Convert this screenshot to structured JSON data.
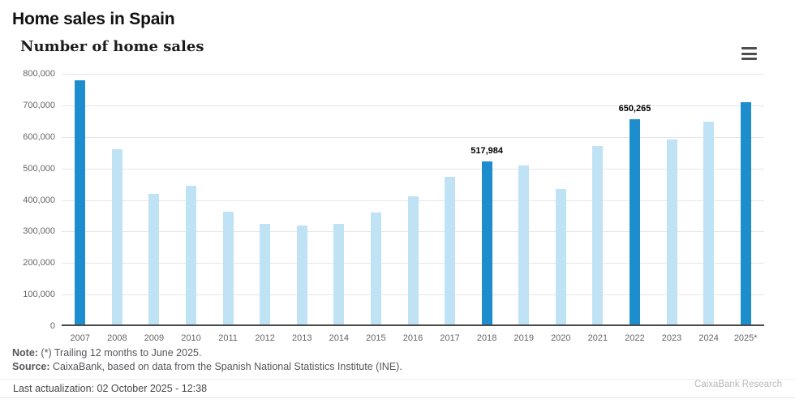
{
  "header": {
    "title": "Home sales in Spain",
    "subtitle": "Number of home sales"
  },
  "chart_data": {
    "type": "bar",
    "title": "Number of home sales",
    "categories": [
      "2007",
      "2008",
      "2009",
      "2010",
      "2011",
      "2012",
      "2013",
      "2014",
      "2015",
      "2016",
      "2017",
      "2018",
      "2019",
      "2020",
      "2021",
      "2022",
      "2023",
      "2024",
      "2025*"
    ],
    "values": [
      775000,
      555000,
      415000,
      440000,
      358000,
      318000,
      314000,
      319000,
      356000,
      407000,
      469000,
      517984,
      505000,
      430000,
      567000,
      650265,
      586000,
      642000,
      704000
    ],
    "highlighted_categories": [
      "2007",
      "2018",
      "2022",
      "2025*"
    ],
    "data_labels": {
      "2018": "517,984",
      "2022": "650,265"
    },
    "ylim": [
      0,
      800000
    ],
    "ytick_interval": 100000,
    "ytick_labels": [
      "800,000",
      "700,000",
      "600,000",
      "500,000",
      "400,000",
      "300,000",
      "200,000",
      "100,000",
      "0"
    ],
    "xlabel": "",
    "ylabel": "",
    "grid": true,
    "legend": "none",
    "colors": {
      "bar": "#bfe2f5",
      "highlight": "#1d8dce",
      "gridline": "#e7e7e7",
      "axis_line": "#4a4a4a",
      "tick_label": "#666666",
      "data_label": "#000000"
    }
  },
  "footer": {
    "note_label": "Note:",
    "note_text": " (*) Trailing 12 months to June 2025.",
    "source_label": "Source:",
    "source_text": " CaixaBank, based on data from the Spanish National Statistics Institute (INE).",
    "last_actualization": "Last actualization: 02 October 2025 - 12:38",
    "brand": "CaixaBank Research"
  }
}
